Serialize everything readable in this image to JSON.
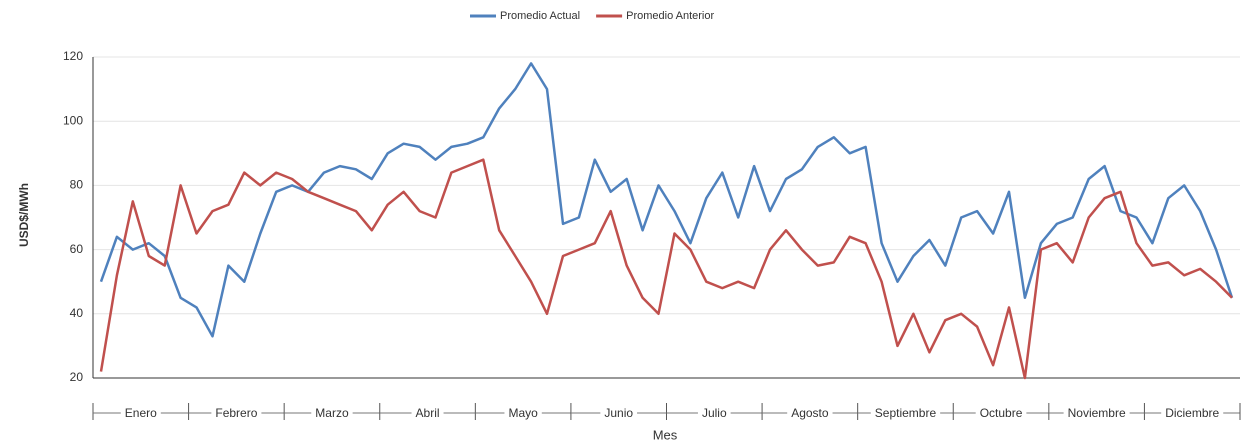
{
  "chart_data": {
    "type": "line",
    "y_label": "USD$/MWh",
    "x_label": "Mes",
    "categories": [
      "Enero",
      "Febrero",
      "Marzo",
      "Abril",
      "Mayo",
      "Junio",
      "Julio",
      "Agosto",
      "Septiembre",
      "Octubre",
      "Noviembre",
      "Diciembre"
    ],
    "ylim": [
      20,
      120
    ],
    "yticks": [
      20,
      40,
      60,
      80,
      100,
      120
    ],
    "grid": true,
    "legend": "top",
    "series": [
      {
        "name": "Promedio Actual",
        "color": "#4f81bd",
        "values": [
          [
            50,
            64,
            60,
            62,
            58,
            45
          ],
          [
            42,
            33,
            55,
            50,
            65,
            78
          ],
          [
            80,
            78,
            84,
            86,
            85,
            82
          ],
          [
            90,
            93,
            92,
            88,
            92,
            93
          ],
          [
            95,
            104,
            110,
            118,
            110,
            68
          ],
          [
            70,
            88,
            78,
            82,
            66,
            80
          ],
          [
            72,
            62,
            76,
            84,
            70,
            86
          ],
          [
            72,
            82,
            85,
            92,
            95,
            90
          ],
          [
            92,
            62,
            50,
            58,
            63,
            55
          ],
          [
            70,
            72,
            65,
            78,
            45,
            62
          ],
          [
            68,
            70,
            82,
            86,
            72,
            70
          ],
          [
            62,
            76,
            80,
            72,
            60,
            45
          ]
        ]
      },
      {
        "name": "Promedio Anterior",
        "color": "#c0504d",
        "values": [
          [
            22,
            52,
            75,
            58,
            55,
            80
          ],
          [
            65,
            72,
            74,
            84,
            80,
            84
          ],
          [
            82,
            78,
            76,
            74,
            72,
            66
          ],
          [
            74,
            78,
            72,
            70,
            84,
            86
          ],
          [
            88,
            66,
            58,
            50,
            40,
            58
          ],
          [
            60,
            62,
            72,
            55,
            45,
            40
          ],
          [
            65,
            60,
            50,
            48,
            50,
            48
          ],
          [
            60,
            66,
            60,
            55,
            56,
            64
          ],
          [
            62,
            50,
            30,
            40,
            28,
            38
          ],
          [
            40,
            36,
            24,
            42,
            20,
            60
          ],
          [
            62,
            56,
            70,
            76,
            78,
            62
          ],
          [
            55,
            56,
            52,
            54,
            50,
            45
          ]
        ]
      }
    ]
  }
}
